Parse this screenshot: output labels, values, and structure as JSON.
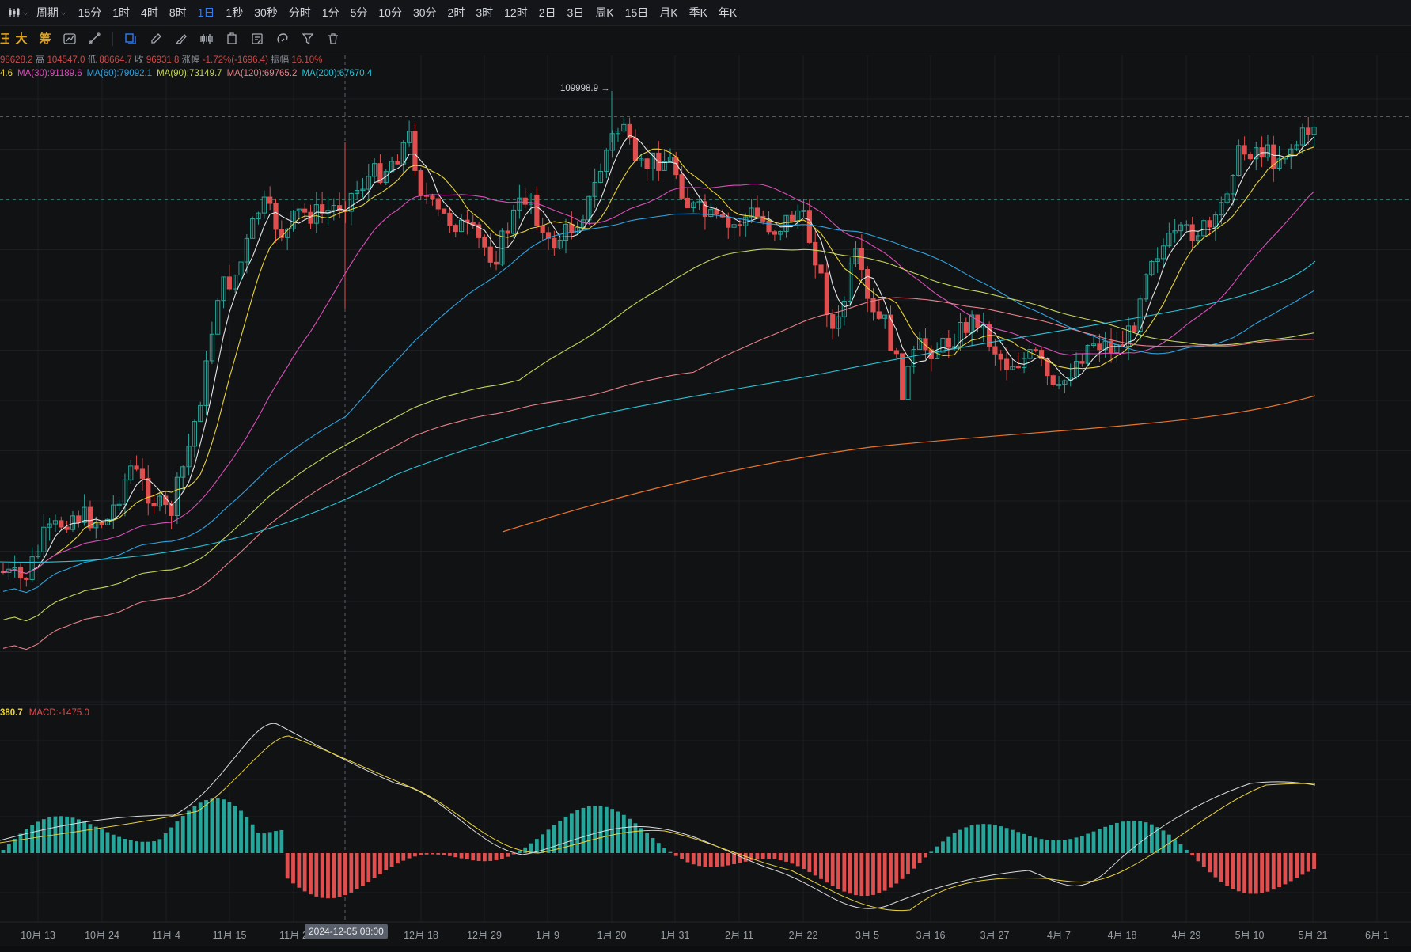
{
  "toolbar_top": {
    "chart_type_icon": "candlestick-chart-icon",
    "period_label": "周期",
    "timeframes": [
      "15分",
      "1时",
      "4时",
      "8时",
      "1日",
      "1秒",
      "30秒",
      "分时",
      "1分",
      "5分",
      "10分",
      "30分",
      "2时",
      "3时",
      "12时",
      "2日",
      "3日",
      "周K",
      "15日",
      "月K",
      "季K",
      "年K"
    ],
    "active_timeframe": "1日"
  },
  "toolbar_draw": {
    "labels": [
      "王",
      "大",
      "筹"
    ],
    "tools": [
      "indicator-icon",
      "ruler-icon",
      "copy-icon",
      "pencil-icon",
      "brush-icon",
      "pattern-icon",
      "shape-icon",
      "note-icon",
      "magnet-icon",
      "filter-icon",
      "trash-icon"
    ]
  },
  "ohlc": {
    "open": "98628.2",
    "high_label": "高",
    "high": "104547.0",
    "low_label": "低",
    "low": "88664.7",
    "close_label": "收",
    "close": "96931.8",
    "change_label": "涨幅",
    "change": "-1.72%(-1696.4)",
    "amplitude_label": "振幅",
    "amplitude": "16.10%"
  },
  "ma_legend": [
    {
      "label": "4.6",
      "color": "#e8d23a"
    },
    {
      "label": "MA(30):91189.6",
      "color": "#d84fb8"
    },
    {
      "label": "MA(60):79092.1",
      "color": "#2fa3e0"
    },
    {
      "label": "MA(90):73149.7",
      "color": "#c6d65a"
    },
    {
      "label": "MA(120):69765.2",
      "color": "#e6808a"
    },
    {
      "label": "MA(200):67670.4",
      "color": "#26c6da"
    }
  ],
  "macd_legend": [
    {
      "label": "380.7",
      "color": "#e8d23a"
    },
    {
      "label": "MACD:-1475.0",
      "color": "#e04f4f"
    }
  ],
  "crosshair_date": "2024-12-05 08:00",
  "max_price_label": "109998.9 →",
  "chart_data": {
    "type": "candlestick",
    "x_ticks": [
      "10月 13",
      "10月 24",
      "11月 4",
      "11月 15",
      "11月 2",
      "12月 18",
      "12月 29",
      "1月 9",
      "1月 20",
      "1月 31",
      "2月 11",
      "2月 22",
      "3月 5",
      "3月 16",
      "3月 27",
      "4月 7",
      "4月 18",
      "4月 29",
      "5月 10",
      "5月 21",
      "6月 1"
    ],
    "colors": {
      "up": "#26a69a",
      "down": "#e04f4f"
    },
    "legend_placement": "top-left",
    "grid": true
  }
}
